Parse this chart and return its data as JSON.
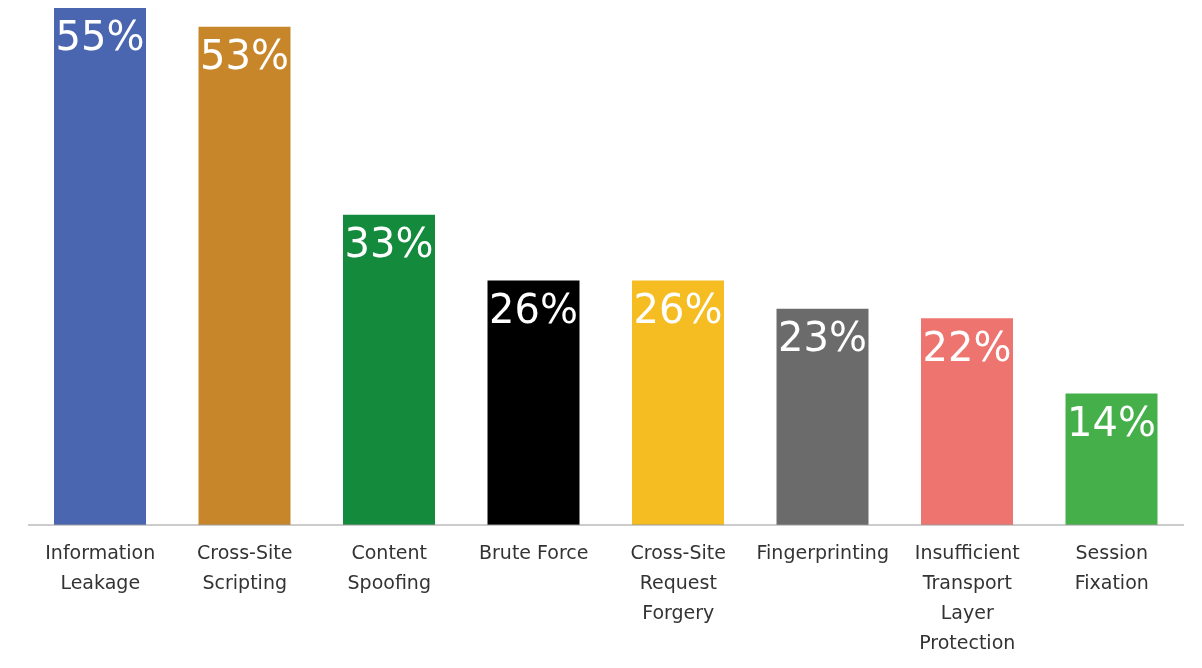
{
  "chart_data": {
    "type": "bar",
    "categories": [
      "Information Leakage",
      "Cross-Site Scripting",
      "Content Spoofing",
      "Brute Force",
      "Cross-Site Request Forgery",
      "Fingerprinting",
      "Insufficient Transport Layer Protection",
      "Session Fixation"
    ],
    "values": [
      55,
      53,
      33,
      26,
      26,
      23,
      22,
      14
    ],
    "value_labels": [
      "55%",
      "53%",
      "33%",
      "26%",
      "26%",
      "23%",
      "22%",
      "14%"
    ],
    "colors": [
      "#4a66b0",
      "#c8862a",
      "#148a3c",
      "#000000",
      "#f5bd22",
      "#6b6b6b",
      "#ee7470",
      "#45b04a"
    ],
    "grid": false,
    "legend": false
  }
}
